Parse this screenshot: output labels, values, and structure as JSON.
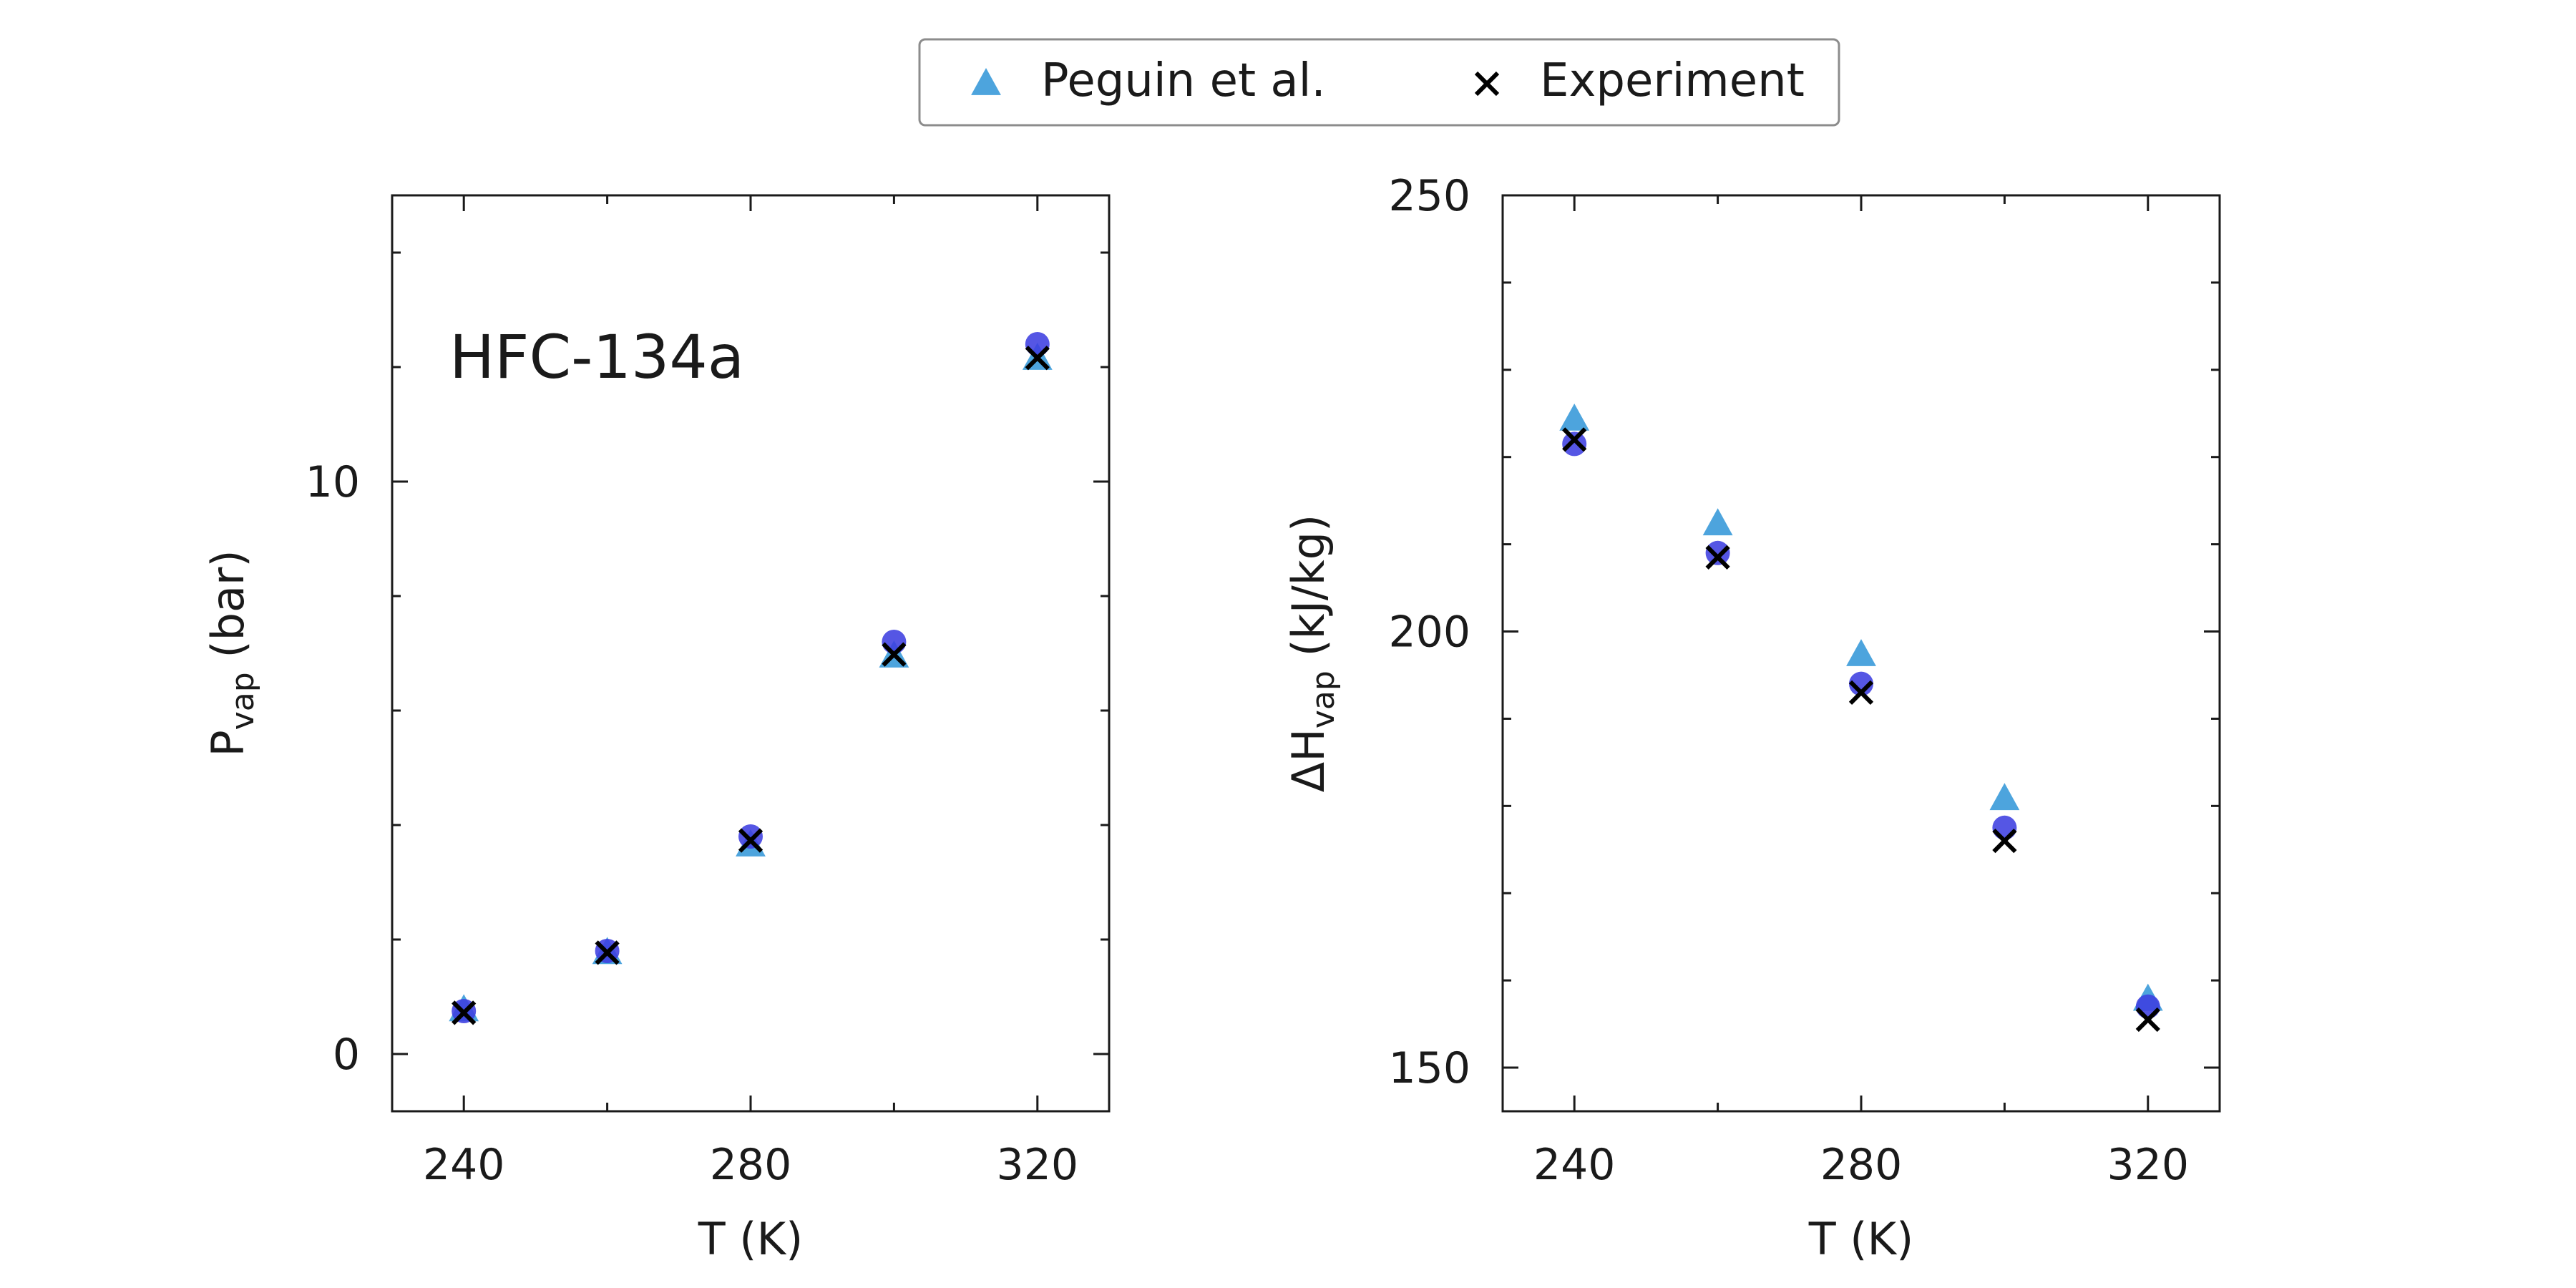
{
  "legend": {
    "entries": [
      {
        "label": "Peguin et al.",
        "marker": "triangle",
        "color": "#3a9ad9"
      },
      {
        "label": "Experiment",
        "marker": "x",
        "color": "#000000"
      }
    ],
    "placement": "top-center"
  },
  "chart_data": [
    {
      "type": "scatter",
      "annotation": "HFC-134a",
      "xlabel": "T (K)",
      "ylabel": {
        "main": "P",
        "subscript": "vap",
        "suffix": " (bar)"
      },
      "xlim": [
        230,
        330
      ],
      "ylim": [
        -1,
        15
      ],
      "xticks": [
        240,
        280,
        320
      ],
      "yticks": [
        0,
        10
      ],
      "grid": false,
      "series": [
        {
          "name": "Peguin et al.",
          "marker": "triangle",
          "color": "#3a9ad9",
          "x": [
            240,
            260,
            280,
            300,
            320
          ],
          "y": [
            0.72,
            1.72,
            3.6,
            6.9,
            12.1
          ]
        },
        {
          "marker": "circle",
          "color": "#3d3fe0",
          "x": [
            240,
            260,
            280,
            300,
            320
          ],
          "y": [
            0.75,
            1.8,
            3.8,
            7.2,
            12.4
          ]
        },
        {
          "name": "Experiment",
          "marker": "x",
          "color": "#000000",
          "x": [
            240,
            260,
            280,
            300,
            320
          ],
          "y": [
            0.72,
            1.77,
            3.73,
            6.98,
            12.16
          ]
        }
      ]
    },
    {
      "type": "scatter",
      "xlabel": "T (K)",
      "ylabel": {
        "main": "ΔH",
        "subscript": "vap",
        "suffix": " (kJ/kg)"
      },
      "xlim": [
        230,
        330
      ],
      "ylim": [
        145,
        250
      ],
      "xticks": [
        240,
        280,
        320
      ],
      "yticks": [
        150,
        200,
        250
      ],
      "grid": false,
      "series": [
        {
          "name": "Peguin et al.",
          "marker": "triangle",
          "color": "#3a9ad9",
          "x": [
            240,
            260,
            280,
            300,
            320
          ],
          "y": [
            224,
            212,
            197,
            180.5,
            157.5
          ]
        },
        {
          "marker": "circle",
          "color": "#3d3fe0",
          "x": [
            240,
            260,
            280,
            300,
            320
          ],
          "y": [
            221.5,
            209,
            194,
            177.5,
            157
          ]
        },
        {
          "name": "Experiment",
          "marker": "x",
          "color": "#000000",
          "x": [
            240,
            260,
            280,
            300,
            320
          ],
          "y": [
            222,
            208.5,
            193,
            176,
            155.5
          ]
        }
      ]
    }
  ]
}
